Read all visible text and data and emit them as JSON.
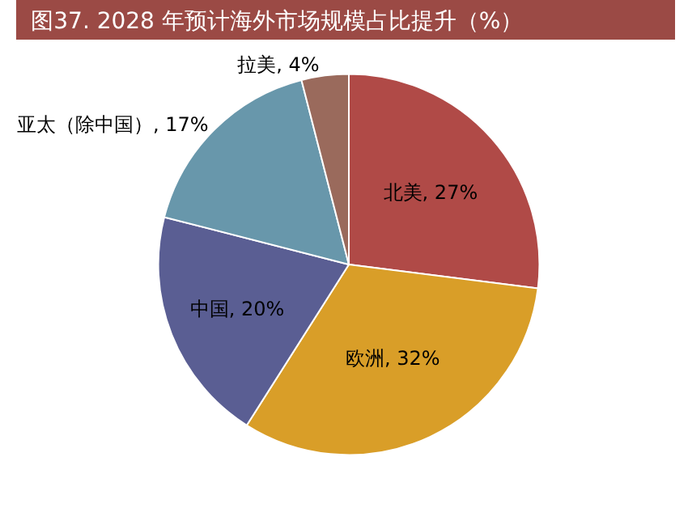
{
  "chart_data": {
    "type": "pie",
    "title": "图37. 2028 年预计海外市场规模占比提升（%）",
    "categories": [
      "北美",
      "欧洲",
      "中国",
      "亚太（除中国）",
      "拉美"
    ],
    "values": [
      27,
      32,
      20,
      17,
      4
    ],
    "colors": [
      "#b04a47",
      "#d99e28",
      "#5a5e93",
      "#6897ab",
      "#9a6a5c"
    ],
    "value_labels": [
      ", 27%",
      ", 32%",
      ", 20%",
      ", 17%",
      ", 4%"
    ],
    "legend": false
  }
}
